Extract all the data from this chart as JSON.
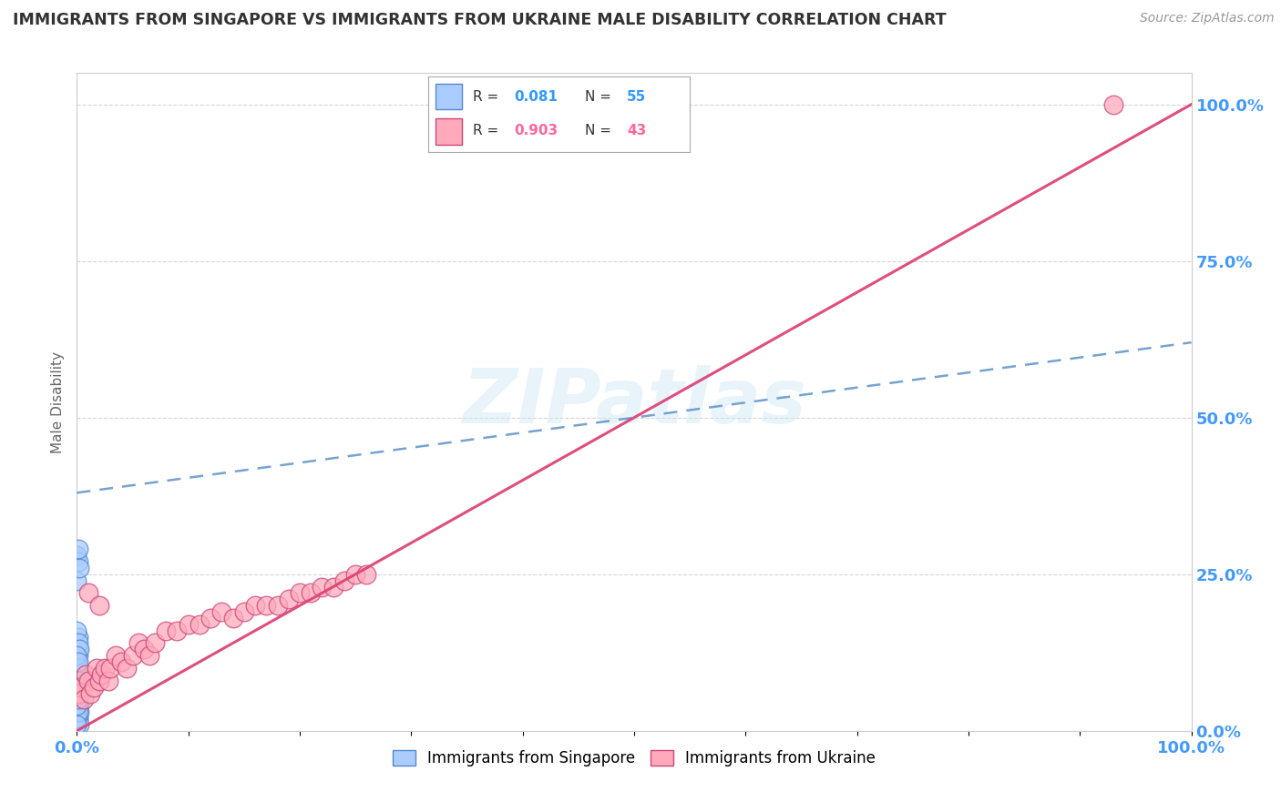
{
  "title": "IMMIGRANTS FROM SINGAPORE VS IMMIGRANTS FROM UKRAINE MALE DISABILITY CORRELATION CHART",
  "source": "Source: ZipAtlas.com",
  "ylabel": "Male Disability",
  "series": [
    {
      "name": "Immigrants from Singapore",
      "R": 0.081,
      "N": 55,
      "color": "#aaccff",
      "edge_color": "#5588cc",
      "line_color": "#6699cc",
      "line_style": "dashed",
      "trendline_x0": 0.0,
      "trendline_y0": 0.38,
      "trendline_x1": 1.0,
      "trendline_y1": 0.62,
      "x": [
        0.0,
        0.001,
        0.0,
        0.002,
        0.001,
        0.0,
        0.001,
        0.002,
        0.0,
        0.001,
        0.0,
        0.001,
        0.0,
        0.002,
        0.001,
        0.0,
        0.001,
        0.002,
        0.0,
        0.001,
        0.0,
        0.001,
        0.0,
        0.002,
        0.001,
        0.0,
        0.001,
        0.002,
        0.0,
        0.001,
        0.0,
        0.001,
        0.0,
        0.002,
        0.001,
        0.0,
        0.001,
        0.002,
        0.0,
        0.001,
        0.0,
        0.001,
        0.0,
        0.002,
        0.001,
        0.0,
        0.001,
        0.002,
        0.0,
        0.001,
        0.0,
        0.001,
        0.0,
        0.001,
        0.0
      ],
      "y": [
        0.28,
        0.27,
        0.24,
        0.26,
        0.29,
        0.05,
        0.04,
        0.06,
        0.05,
        0.07,
        0.08,
        0.07,
        0.09,
        0.06,
        0.08,
        0.1,
        0.09,
        0.08,
        0.11,
        0.12,
        0.14,
        0.13,
        0.11,
        0.1,
        0.07,
        0.06,
        0.05,
        0.04,
        0.03,
        0.02,
        0.03,
        0.04,
        0.02,
        0.03,
        0.15,
        0.16,
        0.14,
        0.13,
        0.12,
        0.11,
        0.05,
        0.06,
        0.07,
        0.08,
        0.04,
        0.03,
        0.02,
        0.01,
        0.02,
        0.03,
        0.04,
        0.05,
        0.06,
        0.07,
        0.01
      ]
    },
    {
      "name": "Immigrants from Ukraine",
      "R": 0.903,
      "N": 43,
      "color": "#ffaabb",
      "edge_color": "#cc4477",
      "line_color": "#dd4477",
      "line_style": "solid",
      "trendline_x0": 0.0,
      "trendline_y0": 0.0,
      "trendline_x1": 1.0,
      "trendline_y1": 1.0,
      "x": [
        0.002,
        0.004,
        0.006,
        0.008,
        0.01,
        0.012,
        0.015,
        0.018,
        0.02,
        0.022,
        0.025,
        0.028,
        0.03,
        0.035,
        0.04,
        0.045,
        0.05,
        0.055,
        0.06,
        0.065,
        0.07,
        0.08,
        0.09,
        0.1,
        0.11,
        0.12,
        0.13,
        0.14,
        0.15,
        0.16,
        0.17,
        0.18,
        0.19,
        0.2,
        0.21,
        0.22,
        0.23,
        0.24,
        0.25,
        0.26,
        0.01,
        0.02,
        0.93
      ],
      "y": [
        0.06,
        0.07,
        0.05,
        0.09,
        0.08,
        0.06,
        0.07,
        0.1,
        0.08,
        0.09,
        0.1,
        0.08,
        0.1,
        0.12,
        0.11,
        0.1,
        0.12,
        0.14,
        0.13,
        0.12,
        0.14,
        0.16,
        0.16,
        0.17,
        0.17,
        0.18,
        0.19,
        0.18,
        0.19,
        0.2,
        0.2,
        0.2,
        0.21,
        0.22,
        0.22,
        0.23,
        0.23,
        0.24,
        0.25,
        0.25,
        0.22,
        0.2,
        1.0
      ]
    }
  ],
  "legend_R_color": "#3399ff",
  "legend_N_color": "#3399ff",
  "legend_R2_color": "#ff6699",
  "legend_N2_color": "#ff6699",
  "watermark": "ZIPatlas",
  "background_color": "#ffffff",
  "grid_color": "#cccccc",
  "title_color": "#333333",
  "axis_label_color": "#4499ff",
  "y_tick_labels": [
    "0.0%",
    "25.0%",
    "50.0%",
    "75.0%",
    "100.0%"
  ],
  "xlim": [
    0.0,
    1.0
  ],
  "ylim": [
    0.0,
    1.05
  ]
}
